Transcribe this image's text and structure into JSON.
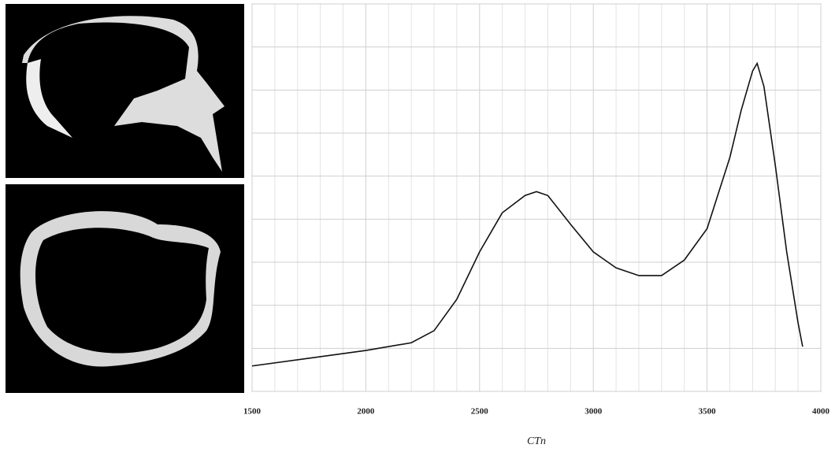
{
  "chart_data": {
    "type": "line",
    "x_label": "CTn",
    "xlim": [
      1500,
      4000
    ],
    "xticks": [
      1500,
      2000,
      2500,
      3000,
      3500,
      4000
    ],
    "xgrid": [
      1600,
      1700,
      1800,
      1900,
      2100,
      2200,
      2300,
      2400,
      2600,
      2700,
      2800,
      2900,
      3100,
      3200,
      3300,
      3400,
      3600,
      3700,
      3800,
      3900
    ],
    "ylim": [
      0,
      9
    ],
    "ygrid": [
      0,
      1,
      2,
      3,
      4,
      5,
      6,
      7,
      8,
      9
    ],
    "series": [
      {
        "color": "#111111",
        "x": [
          1500,
          1750,
          2000,
          2200,
          2300,
          2400,
          2500,
          2600,
          2700,
          2750,
          2800,
          2900,
          3000,
          3100,
          3200,
          3300,
          3400,
          3500,
          3600,
          3650,
          3700,
          3720,
          3750,
          3800,
          3850,
          3900,
          3920
        ],
        "values": [
          0.59,
          0.77,
          0.95,
          1.13,
          1.41,
          2.14,
          3.24,
          4.15,
          4.55,
          4.64,
          4.55,
          3.88,
          3.24,
          2.87,
          2.69,
          2.69,
          3.05,
          3.78,
          5.43,
          6.53,
          7.44,
          7.62,
          7.08,
          5.25,
          3.24,
          1.59,
          1.04
        ]
      }
    ]
  }
}
